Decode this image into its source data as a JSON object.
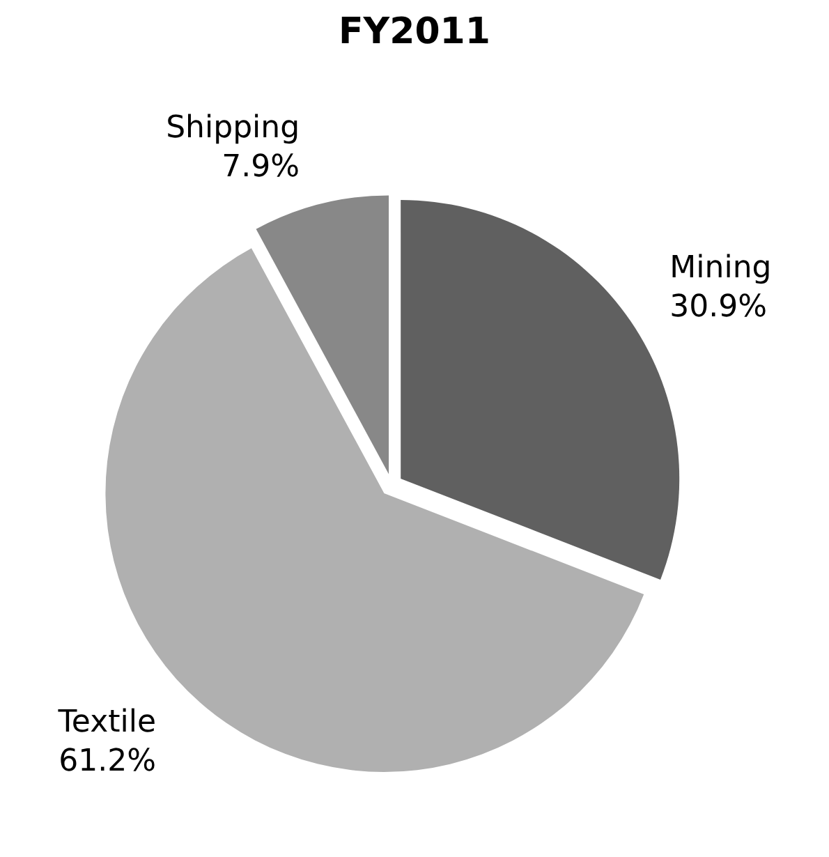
{
  "chart_data": {
    "type": "pie",
    "title": "FY2011",
    "categories": [
      "Mining",
      "Textile",
      "Shipping"
    ],
    "values": [
      30.9,
      61.2,
      7.9
    ],
    "value_labels": [
      "30.9%",
      "61.2%",
      "7.9%"
    ],
    "colors": [
      "#606060",
      "#b0b0b0",
      "#888888"
    ]
  }
}
